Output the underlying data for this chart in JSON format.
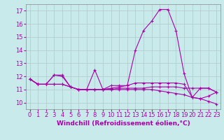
{
  "background_color": "#c8eaea",
  "grid_color": "#b0c8c8",
  "line_color": "#aa00aa",
  "xlabel": "Windchill (Refroidissement éolien,°C)",
  "xlabel_fontsize": 6.5,
  "tick_fontsize": 6.0,
  "ylim": [
    9.5,
    17.5
  ],
  "xlim": [
    -0.5,
    23.5
  ],
  "yticks": [
    10,
    11,
    12,
    13,
    14,
    15,
    16,
    17
  ],
  "xticks": [
    0,
    1,
    2,
    3,
    4,
    5,
    6,
    7,
    8,
    9,
    10,
    11,
    12,
    13,
    14,
    15,
    16,
    17,
    18,
    19,
    20,
    21,
    22,
    23
  ],
  "series": [
    [
      11.8,
      11.4,
      11.4,
      12.1,
      12.1,
      11.2,
      11.0,
      11.0,
      12.5,
      11.0,
      11.3,
      11.3,
      11.3,
      14.0,
      15.5,
      16.2,
      17.1,
      17.1,
      15.5,
      12.2,
      10.4,
      11.1,
      11.1,
      10.8
    ],
    [
      11.8,
      11.4,
      11.4,
      11.4,
      11.4,
      11.2,
      11.0,
      11.0,
      11.0,
      11.0,
      11.0,
      11.1,
      11.1,
      11.1,
      11.1,
      11.2,
      11.2,
      11.2,
      11.2,
      11.1,
      11.1,
      11.1,
      11.1,
      10.8
    ],
    [
      11.8,
      11.4,
      11.4,
      11.4,
      11.4,
      11.2,
      11.0,
      11.0,
      11.0,
      11.0,
      11.0,
      11.0,
      11.0,
      11.0,
      11.0,
      11.0,
      10.9,
      10.8,
      10.7,
      10.6,
      10.4,
      10.3,
      10.1,
      9.9
    ],
    [
      11.8,
      11.4,
      11.4,
      12.1,
      12.0,
      11.2,
      11.0,
      11.0,
      11.0,
      11.0,
      11.1,
      11.2,
      11.3,
      11.5,
      11.5,
      11.5,
      11.5,
      11.5,
      11.5,
      11.4,
      10.4,
      10.3,
      10.5,
      10.8
    ]
  ]
}
